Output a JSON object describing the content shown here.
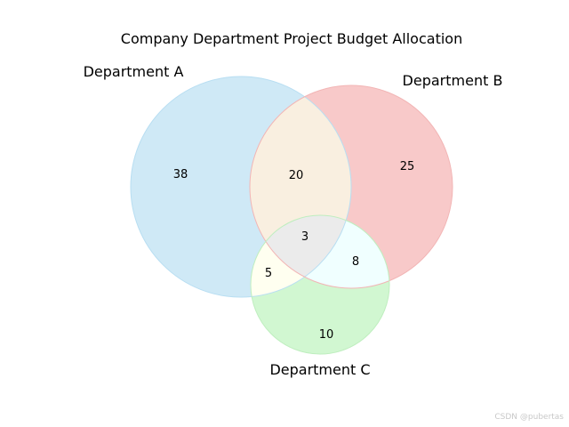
{
  "chart_data": {
    "type": "venn",
    "title": "Company Department Project Budget Allocation",
    "sets": [
      "Department A",
      "Department B",
      "Department C"
    ],
    "regions": [
      {
        "key": "A_only",
        "sets": [
          "Department A"
        ],
        "value": 38
      },
      {
        "key": "B_only",
        "sets": [
          "Department B"
        ],
        "value": 25
      },
      {
        "key": "C_only",
        "sets": [
          "Department C"
        ],
        "value": 10
      },
      {
        "key": "AB_only",
        "sets": [
          "Department A",
          "Department B"
        ],
        "value": 20
      },
      {
        "key": "AC_only",
        "sets": [
          "Department A",
          "Department C"
        ],
        "value": 5
      },
      {
        "key": "BC_only",
        "sets": [
          "Department B",
          "Department C"
        ],
        "value": 8
      },
      {
        "key": "ABC",
        "sets": [
          "Department A",
          "Department B",
          "Department C"
        ],
        "value": 3
      }
    ],
    "colors": {
      "A": "#cfe9f6",
      "B": "#f8c9c9",
      "C": "#d1f7d1",
      "AB": "#f9efe0",
      "AC": "#fffff0",
      "BC": "#f0ffff",
      "ABC": "#ebebeb"
    }
  },
  "watermark": "CSDN @pubertas"
}
